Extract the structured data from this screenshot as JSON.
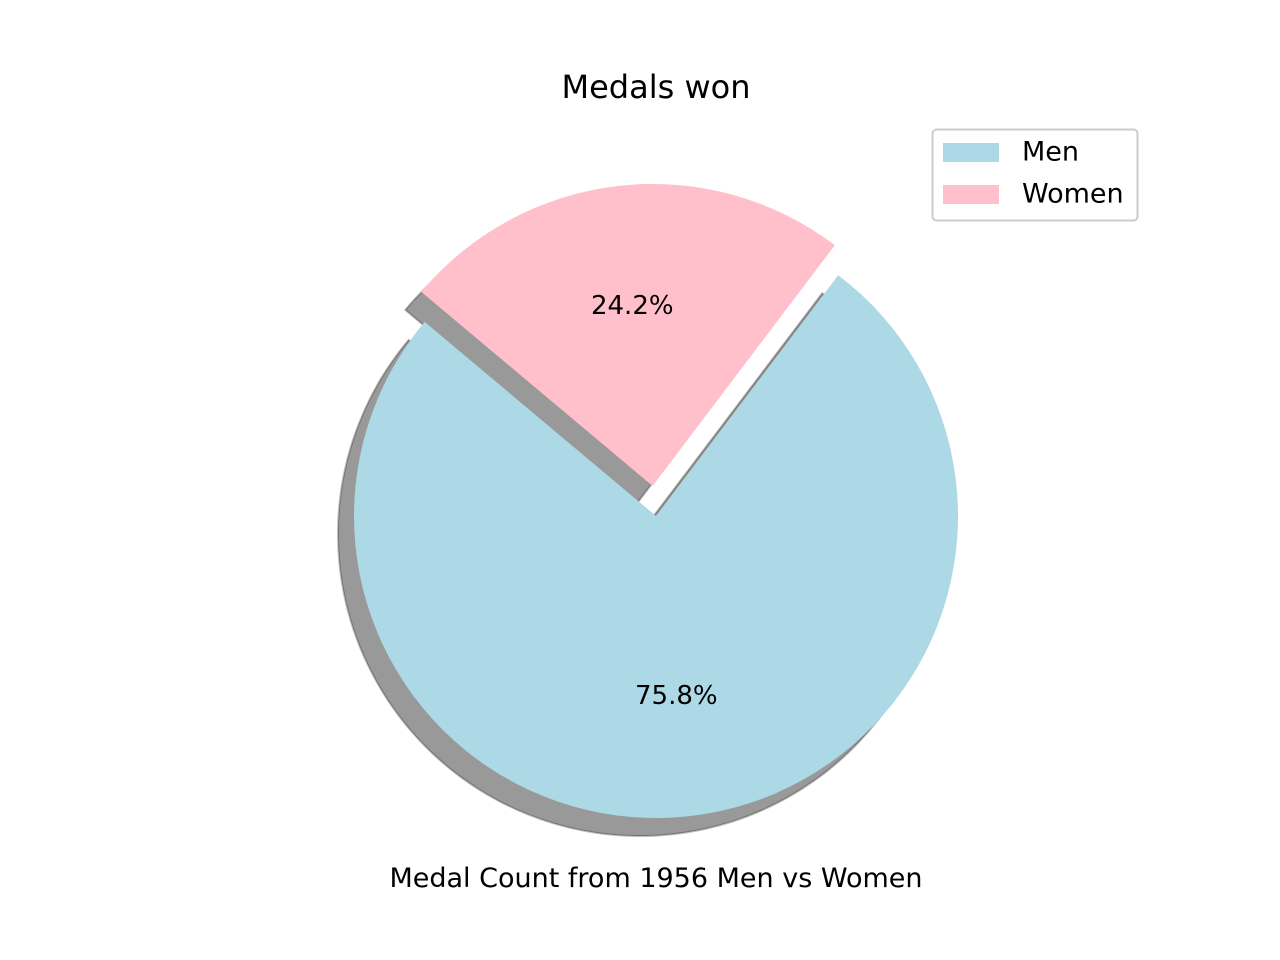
{
  "chart_data": {
    "type": "pie",
    "title": "Medals won",
    "xlabel": "Medal Count from 1956 Men vs Women",
    "ylabel": "",
    "labels": [
      "Men",
      "Women"
    ],
    "values": [
      75.8,
      24.2
    ],
    "percent_labels": [
      "75.8%",
      "24.2%"
    ],
    "colors": [
      "#add8e6",
      "#ffc0cb"
    ],
    "explode": [
      0,
      0.1
    ],
    "start_angle_deg": 140,
    "shadow": true,
    "legend_position": "upper-right"
  }
}
